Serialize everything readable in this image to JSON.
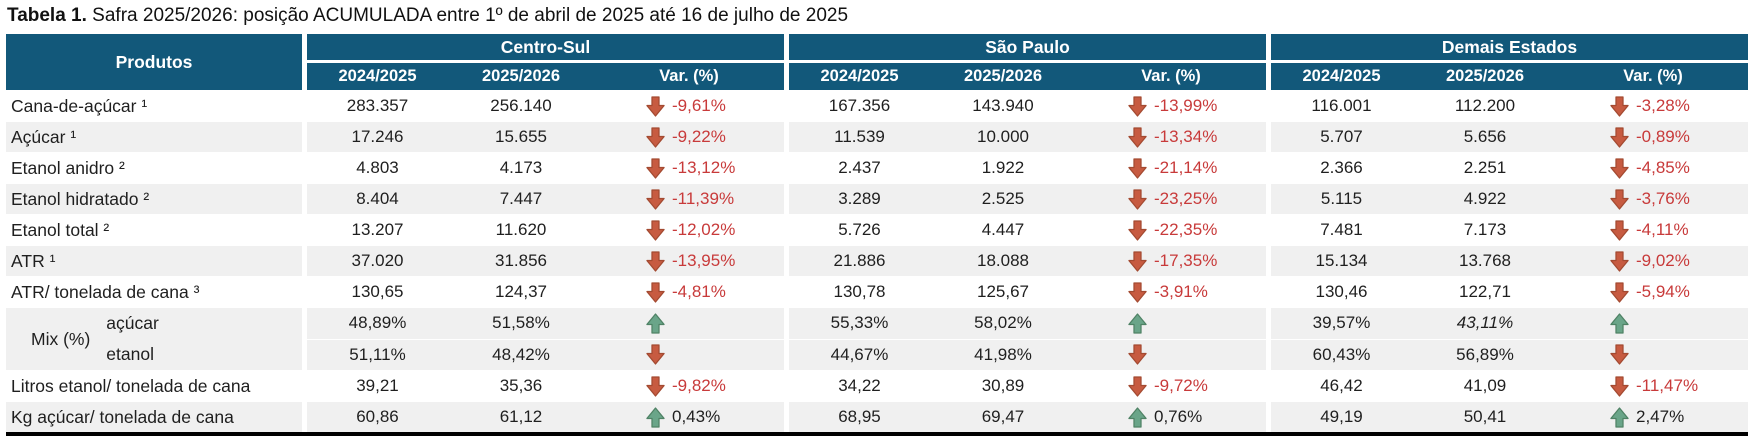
{
  "title": {
    "bold": "Tabela 1.",
    "rest": " Safra 2025/2026: posição ACUMULADA entre 1º de abril de 2025 até 16 de julho de 2025"
  },
  "colors": {
    "header_bg": "#12587a",
    "row_alt_bg": "#f0f0f0",
    "negative_text": "#c83a3a",
    "down_arrow_fill": "#c75b41",
    "down_arrow_border": "#a34a31",
    "up_arrow_fill": "#6aa589",
    "up_arrow_border": "#4f8265"
  },
  "chart_data": {
    "type": "table",
    "title": "Tabela 1. Safra 2025/2026: posição ACUMULADA entre 1º de abril de 2025 até 16 de julho de 2025",
    "corner_header": "Produtos",
    "column_groups": [
      {
        "label": "Centro-Sul"
      },
      {
        "label": "São Paulo"
      },
      {
        "label": "Demais Estados"
      }
    ],
    "sub_columns": [
      "2024/2025",
      "2025/2026",
      "Var. (%)"
    ],
    "rows": [
      {
        "produto": "Cana-de-açúcar ¹",
        "cells": [
          {
            "prev": "283.357",
            "curr": "256.140",
            "trend": "down",
            "var": "-9,61%"
          },
          {
            "prev": "167.356",
            "curr": "143.940",
            "trend": "down",
            "var": "-13,99%"
          },
          {
            "prev": "116.001",
            "curr": "112.200",
            "trend": "down",
            "var": "-3,28%"
          }
        ]
      },
      {
        "produto": "Açúcar ¹",
        "cells": [
          {
            "prev": "17.246",
            "curr": "15.655",
            "trend": "down",
            "var": "-9,22%"
          },
          {
            "prev": "11.539",
            "curr": "10.000",
            "trend": "down",
            "var": "-13,34%"
          },
          {
            "prev": "5.707",
            "curr": "5.656",
            "trend": "down",
            "var": "-0,89%"
          }
        ]
      },
      {
        "produto": "Etanol anidro ²",
        "cells": [
          {
            "prev": "4.803",
            "curr": "4.173",
            "trend": "down",
            "var": "-13,12%"
          },
          {
            "prev": "2.437",
            "curr": "1.922",
            "trend": "down",
            "var": "-21,14%"
          },
          {
            "prev": "2.366",
            "curr": "2.251",
            "trend": "down",
            "var": "-4,85%"
          }
        ]
      },
      {
        "produto": "Etanol hidratado ²",
        "cells": [
          {
            "prev": "8.404",
            "curr": "7.447",
            "trend": "down",
            "var": "-11,39%"
          },
          {
            "prev": "3.289",
            "curr": "2.525",
            "trend": "down",
            "var": "-23,25%"
          },
          {
            "prev": "5.115",
            "curr": "4.922",
            "trend": "down",
            "var": "-3,76%"
          }
        ]
      },
      {
        "produto": "Etanol total ²",
        "cells": [
          {
            "prev": "13.207",
            "curr": "11.620",
            "trend": "down",
            "var": "-12,02%"
          },
          {
            "prev": "5.726",
            "curr": "4.447",
            "trend": "down",
            "var": "-22,35%"
          },
          {
            "prev": "7.481",
            "curr": "7.173",
            "trend": "down",
            "var": "-4,11%"
          }
        ]
      },
      {
        "produto": "ATR ¹",
        "cells": [
          {
            "prev": "37.020",
            "curr": "31.856",
            "trend": "down",
            "var": "-13,95%"
          },
          {
            "prev": "21.886",
            "curr": "18.088",
            "trend": "down",
            "var": "-17,35%"
          },
          {
            "prev": "15.134",
            "curr": "13.768",
            "trend": "down",
            "var": "-9,02%"
          }
        ]
      },
      {
        "produto": "ATR/ tonelada de cana ³",
        "cells": [
          {
            "prev": "130,65",
            "curr": "124,37",
            "trend": "down",
            "var": "-4,81%"
          },
          {
            "prev": "130,78",
            "curr": "125,67",
            "trend": "down",
            "var": "-3,91%"
          },
          {
            "prev": "130,46",
            "curr": "122,71",
            "trend": "down",
            "var": "-5,94%"
          }
        ]
      },
      {
        "produto": "Mix (%)",
        "subrows": [
          {
            "produto": "açúcar",
            "cells": [
              {
                "prev": "48,89%",
                "curr": "51,58%",
                "trend": "up",
                "var": ""
              },
              {
                "prev": "55,33%",
                "curr": "58,02%",
                "trend": "up",
                "var": ""
              },
              {
                "prev": "39,57%",
                "curr": "43,11%",
                "trend": "up",
                "var": "",
                "italic_curr": true
              }
            ]
          },
          {
            "produto": "etanol",
            "cells": [
              {
                "prev": "51,11%",
                "curr": "48,42%",
                "trend": "down",
                "var": ""
              },
              {
                "prev": "44,67%",
                "curr": "41,98%",
                "trend": "down",
                "var": ""
              },
              {
                "prev": "60,43%",
                "curr": "56,89%",
                "trend": "down",
                "var": ""
              }
            ]
          }
        ]
      },
      {
        "produto": "Litros etanol/ tonelada de cana",
        "cells": [
          {
            "prev": "39,21",
            "curr": "35,36",
            "trend": "down",
            "var": "-9,82%"
          },
          {
            "prev": "34,22",
            "curr": "30,89",
            "trend": "down",
            "var": "-9,72%"
          },
          {
            "prev": "46,42",
            "curr": "41,09",
            "trend": "down",
            "var": "-11,47%"
          }
        ]
      },
      {
        "produto": "Kg açúcar/ tonelada de cana",
        "cells": [
          {
            "prev": "60,86",
            "curr": "61,12",
            "trend": "up",
            "var": "0,43%"
          },
          {
            "prev": "68,95",
            "curr": "69,47",
            "trend": "up",
            "var": "0,76%"
          },
          {
            "prev": "49,19",
            "curr": "50,41",
            "trend": "up",
            "var": "2,47%"
          }
        ]
      }
    ]
  }
}
